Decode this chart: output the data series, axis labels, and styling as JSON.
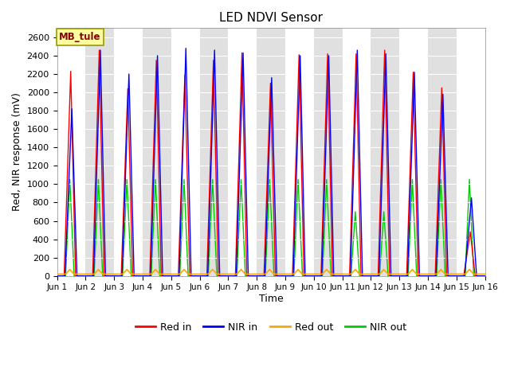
{
  "title": "LED NDVI Sensor",
  "xlabel": "Time",
  "ylabel": "Red, NIR response (mV)",
  "ylim": [
    0,
    2700
  ],
  "yticks": [
    0,
    200,
    400,
    600,
    800,
    1000,
    1200,
    1400,
    1600,
    1800,
    2000,
    2200,
    2400,
    2600
  ],
  "label_box": "MB_tule",
  "legend_labels": [
    "Red in",
    "NIR in",
    "Red out",
    "NIR out"
  ],
  "legend_colors": [
    "#ff0000",
    "#0000ff",
    "#ffa500",
    "#00cc00"
  ],
  "x_tick_labels": [
    "Jun 1",
    "Jun 2",
    "Jun 3",
    "Jun 4",
    "Jun 5",
    "Jun 6",
    "Jun 7",
    "Jun 8",
    "Jun 9",
    "Jun 10",
    "Jun 11",
    "Jun 12",
    "Jun 13",
    "Jun 14",
    "Jun 15",
    "Jun 16"
  ],
  "days": 15,
  "red_in_peaks": [
    2230,
    2460,
    2040,
    2350,
    2190,
    2350,
    2430,
    2100,
    2410,
    2420,
    2420,
    2460,
    2220,
    2050,
    480
  ],
  "nir_in_peaks": [
    1820,
    2460,
    2200,
    2400,
    2480,
    2460,
    2430,
    2160,
    2400,
    2400,
    2460,
    2420,
    2220,
    1980,
    850
  ],
  "nir_out_peaks": [
    1050,
    1050,
    1050,
    1050,
    1050,
    1050,
    1050,
    1050,
    1050,
    1050,
    700,
    700,
    1050,
    1050,
    1050
  ],
  "red_in_color": "#ff0000",
  "nir_in_color": "#0000ff",
  "red_out_color": "#ffa500",
  "nir_out_color": "#00cc00",
  "band_colors": [
    "#ffffff",
    "#e0e0e0"
  ]
}
